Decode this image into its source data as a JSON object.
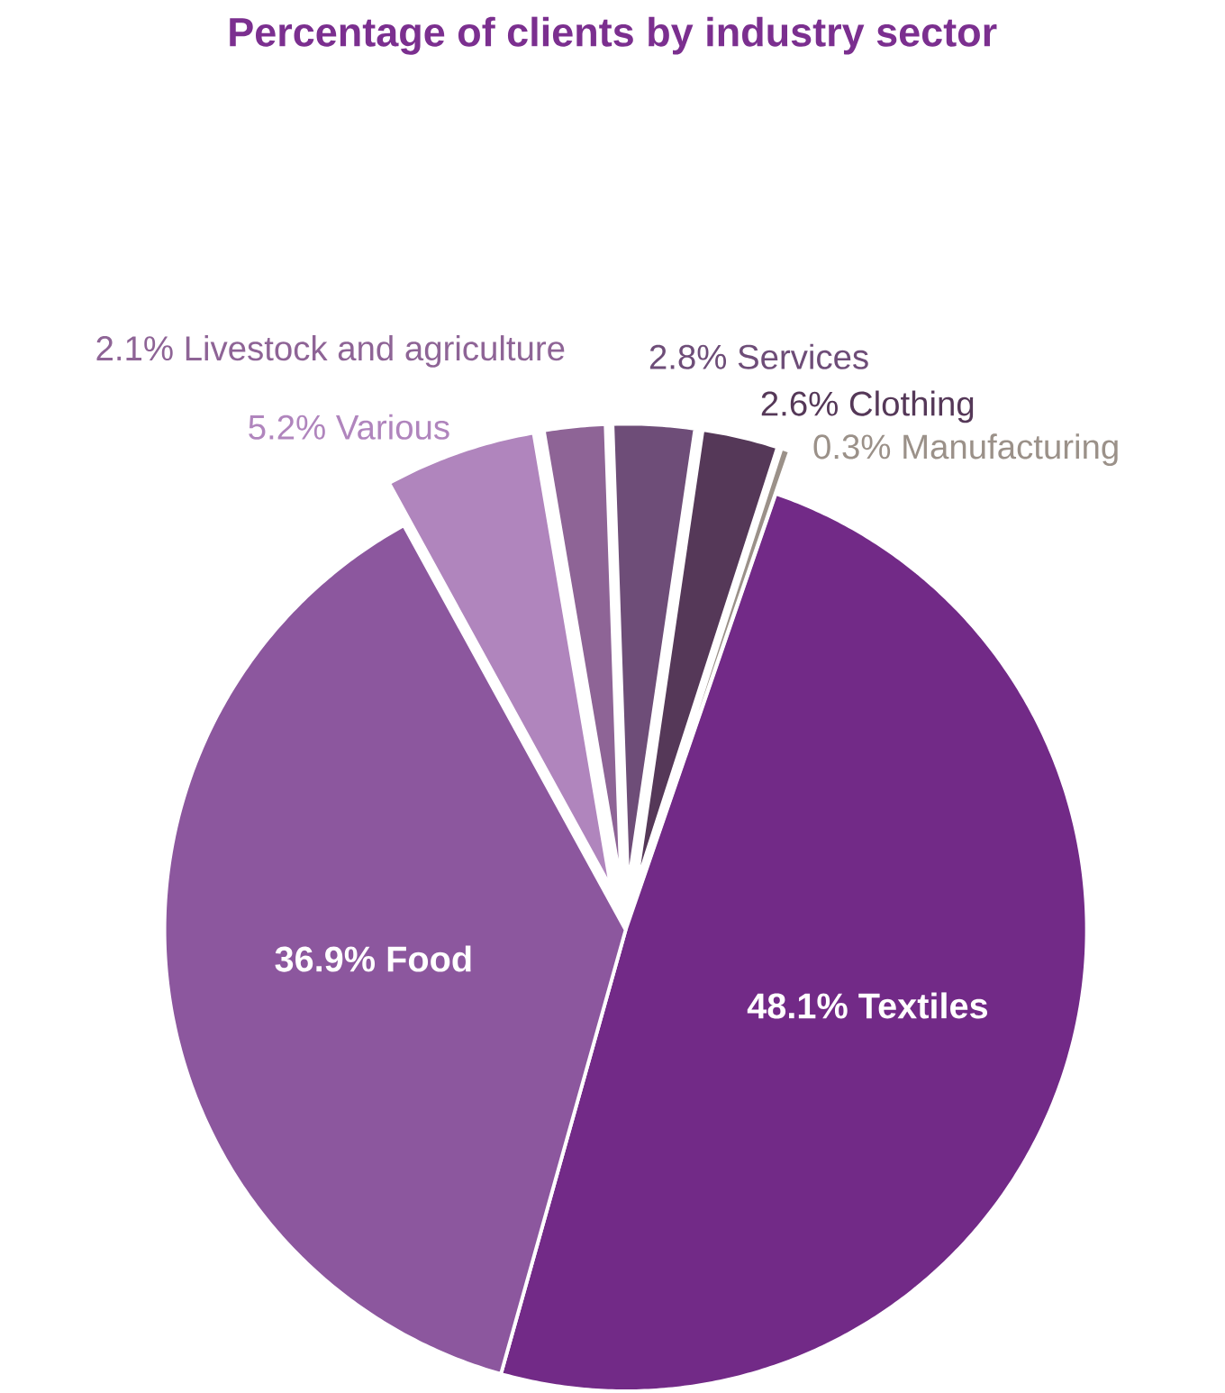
{
  "chart_data": {
    "type": "pie",
    "title": "Percentage of clients by industry sector",
    "categories": [
      "Textiles",
      "Food",
      "Various",
      "Livestock and agriculture",
      "Services",
      "Clothing",
      "Manufacturing"
    ],
    "values": [
      48.1,
      36.9,
      5.2,
      2.1,
      2.8,
      2.6,
      0.3
    ],
    "value_labels": [
      "48.1%",
      "36.9%",
      "5.2%",
      "2.1%",
      "2.8%",
      "2.6%",
      "0.3%"
    ],
    "colors": [
      "#722a87",
      "#8c579e",
      "#b085bd",
      "#8e6496",
      "#6e4d78",
      "#553858",
      "#9b9189"
    ]
  }
}
